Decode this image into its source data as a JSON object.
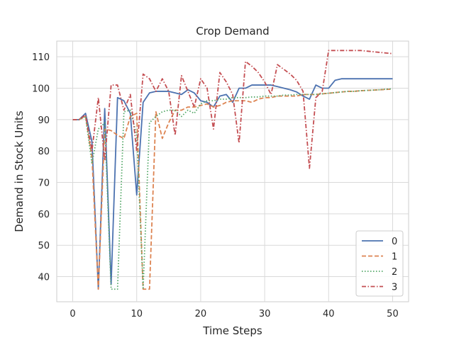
{
  "chart_data": {
    "type": "line",
    "title": "Crop Demand",
    "xlabel": "Time Steps",
    "ylabel": "Demand in Stock Units",
    "xlim": [
      -2.5,
      52.5
    ],
    "ylim": [
      32,
      115
    ],
    "xticks": [
      0,
      10,
      20,
      30,
      40,
      50
    ],
    "yticks": [
      40,
      50,
      60,
      70,
      80,
      90,
      100,
      110
    ],
    "grid": true,
    "legend_position": "lower-right",
    "x": [
      0,
      1,
      2,
      3,
      4,
      5,
      6,
      7,
      8,
      9,
      10,
      11,
      12,
      13,
      14,
      15,
      16,
      17,
      18,
      19,
      20,
      21,
      22,
      23,
      24,
      25,
      26,
      27,
      28,
      29,
      30,
      31,
      32,
      33,
      34,
      35,
      36,
      37,
      38,
      39,
      40,
      41,
      42,
      43,
      44,
      45,
      46,
      47,
      48,
      49,
      50
    ],
    "series": [
      {
        "name": "0",
        "color": "#4c72b0",
        "dash": "solid",
        "values": [
          90,
          90,
          92,
          83,
          36,
          93.5,
          37.5,
          97,
          96,
          92,
          66,
          95.5,
          98.5,
          99,
          99,
          99,
          98.5,
          98,
          99.5,
          98.5,
          96,
          95.5,
          94,
          97.5,
          98,
          95.5,
          100,
          100,
          101,
          101,
          101,
          101,
          100.5,
          100,
          99.5,
          98.8,
          97.5,
          96.5,
          101,
          100,
          100,
          102.5,
          103,
          103,
          103,
          103,
          103,
          103,
          103,
          103,
          103
        ]
      },
      {
        "name": "1",
        "color": "#dd8452",
        "dash": "dashed",
        "values": [
          90,
          90,
          91,
          78,
          36,
          87,
          86.5,
          85,
          84,
          91,
          92,
          36,
          36,
          92.5,
          84,
          89,
          93,
          93,
          94,
          94,
          94.5,
          95,
          94,
          94.5,
          95.5,
          96,
          96,
          96,
          95.5,
          96.5,
          97,
          97,
          97.5,
          97.5,
          97.5,
          97.5,
          98,
          98,
          98,
          98.2,
          98.4,
          98.6,
          98.8,
          99,
          99,
          99.2,
          99.3,
          99.4,
          99.5,
          99.6,
          99.7
        ]
      },
      {
        "name": "2",
        "color": "#55a868",
        "dash": "dotted",
        "values": [
          90,
          90,
          91,
          76,
          87,
          89,
          36,
          36,
          92.5,
          93,
          85,
          36,
          89,
          91,
          92.5,
          93,
          93,
          91,
          93,
          92,
          95,
          96,
          96,
          96.5,
          96.5,
          97,
          97,
          97,
          97.2,
          97.2,
          97.5,
          97.5,
          97.5,
          97.8,
          97.8,
          98,
          98,
          98,
          98,
          98.2,
          98.4,
          98.6,
          98.8,
          99,
          99,
          99.2,
          99.3,
          99.4,
          99.5,
          99.7,
          99.8
        ]
      },
      {
        "name": "3",
        "color": "#c44e52",
        "dash": "dashdot",
        "values": [
          90,
          90,
          91.5,
          80,
          97,
          77,
          101,
          101,
          93,
          98,
          80,
          104.5,
          103,
          99,
          103,
          99,
          85,
          104,
          99,
          94,
          103,
          100,
          87,
          105,
          102,
          98,
          82.5,
          108.5,
          107,
          105,
          102,
          98,
          107.5,
          106,
          104.5,
          102.5,
          99,
          74.5,
          97,
          99,
          112,
          112,
          112,
          112,
          112,
          112,
          111.8,
          111.6,
          111.4,
          111.2,
          111
        ]
      }
    ]
  }
}
